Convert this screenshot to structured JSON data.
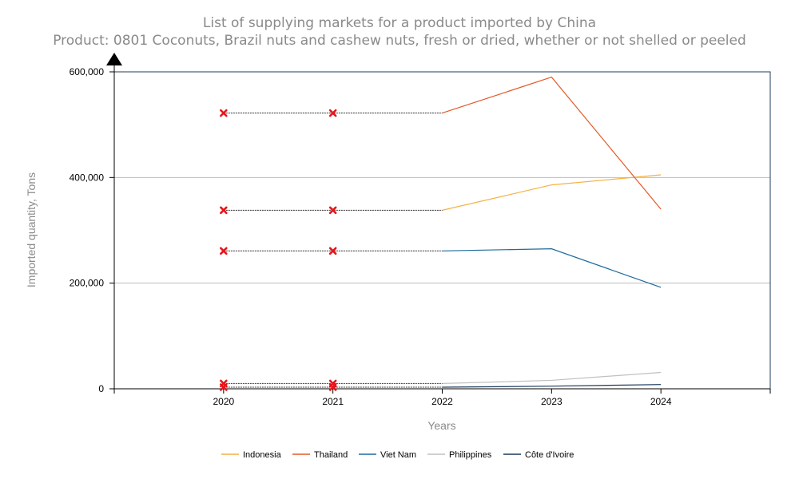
{
  "chart_data": {
    "type": "line",
    "title": "List of supplying markets for a product imported by China",
    "subtitle": "Product: 0801 Coconuts, Brazil nuts and cashew nuts, fresh or dried, whether or not shelled or peeled",
    "xlabel": "Years",
    "ylabel": "Imported quantity, Tons",
    "x": [
      "2020",
      "2021",
      "2022",
      "2023",
      "2024"
    ],
    "xlim": [
      2019,
      2025
    ],
    "ylim": [
      0,
      600000
    ],
    "yticks": [
      0,
      200000,
      400000,
      600000
    ],
    "ytick_labels": [
      "0",
      "200,000",
      "400,000",
      "600,000"
    ],
    "grid": "horizontal",
    "legend_position": "bottom",
    "estimated_marker": "x",
    "estimated_marker_color": "#e8141b",
    "estimated_years": [
      "2020",
      "2021"
    ],
    "series": [
      {
        "name": "Indonesia",
        "color": "#f5b041",
        "values": [
          338000,
          338000,
          338000,
          386000,
          405000
        ]
      },
      {
        "name": "Thailand",
        "color": "#e35a2a",
        "values": [
          522000,
          522000,
          522000,
          590000,
          340000
        ]
      },
      {
        "name": "Viet Nam",
        "color": "#1f6b9c",
        "values": [
          261000,
          261000,
          261000,
          265000,
          192000
        ]
      },
      {
        "name": "Philippines",
        "color": "#c0c0c0",
        "values": [
          10000,
          10000,
          10000,
          16000,
          31000
        ]
      },
      {
        "name": "Côte d'Ivoire",
        "color": "#1a3a5c",
        "values": [
          3000,
          3000,
          3000,
          5000,
          8000
        ]
      }
    ]
  }
}
